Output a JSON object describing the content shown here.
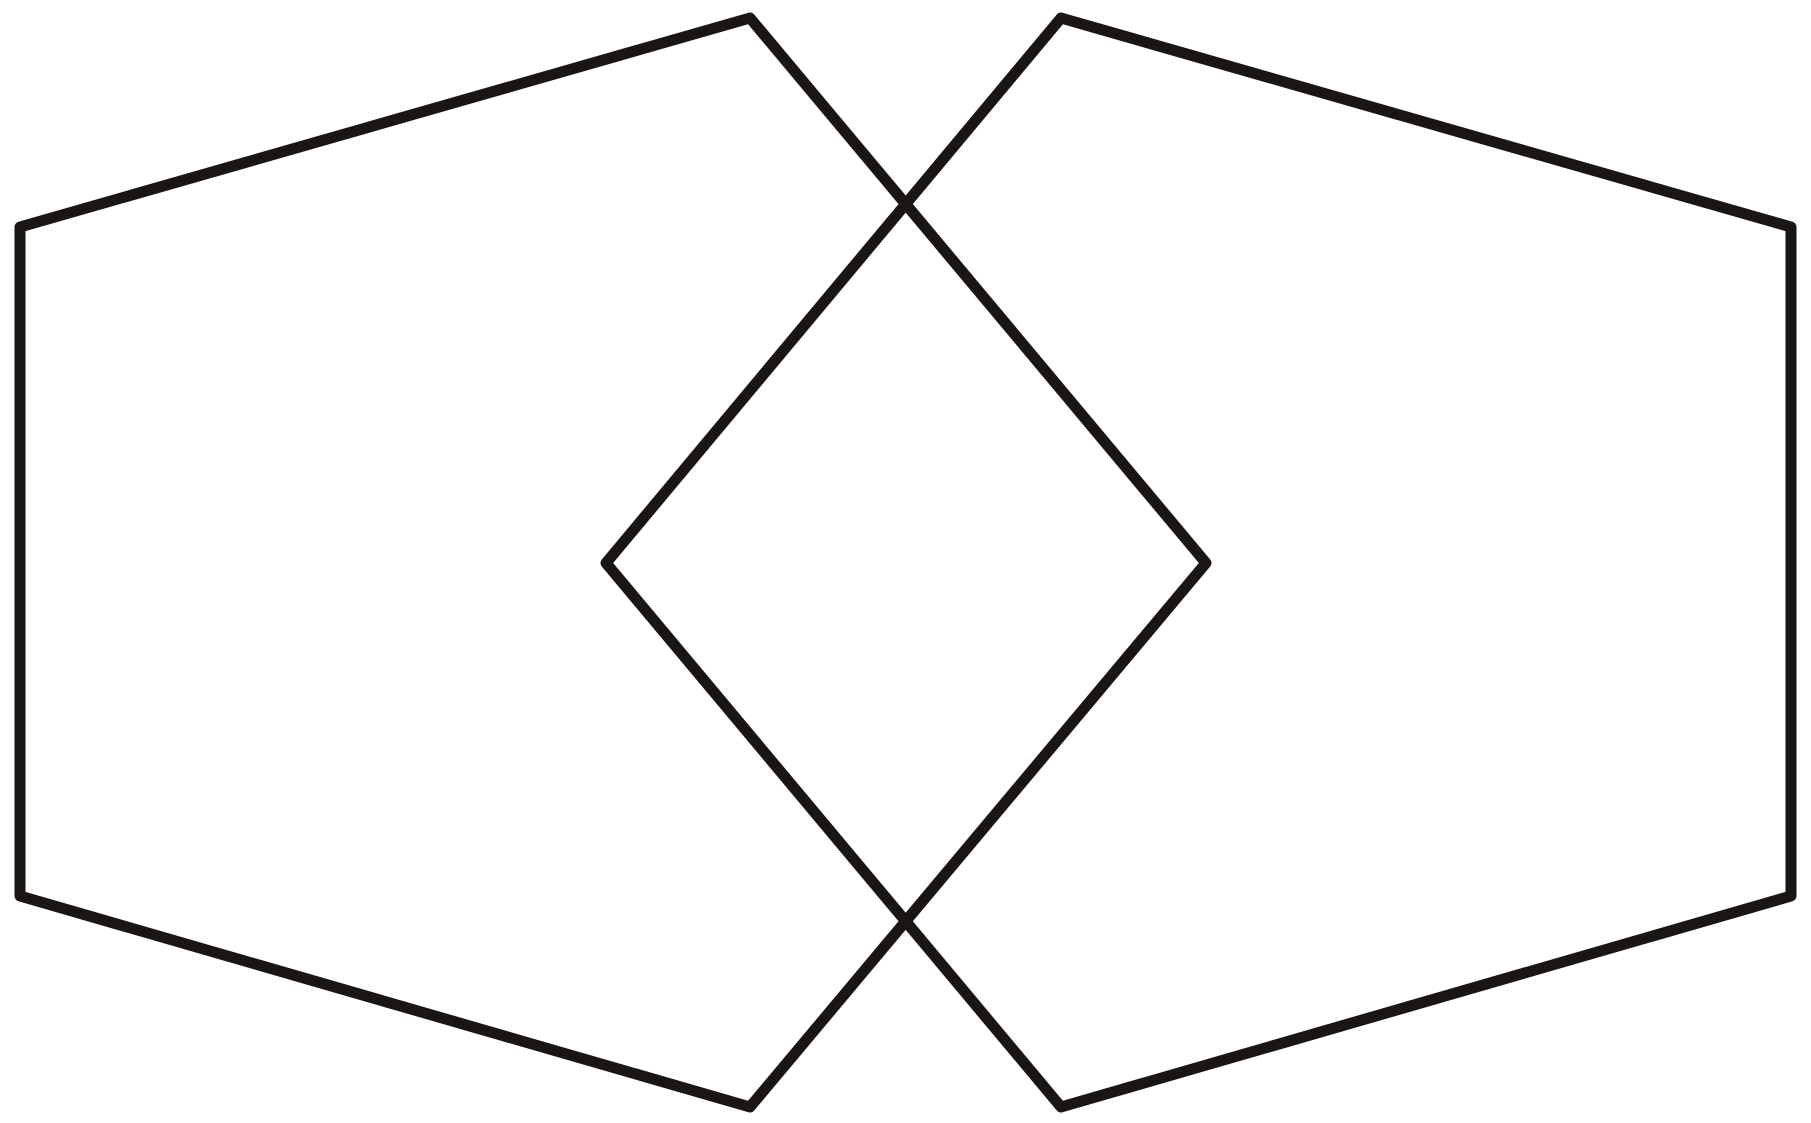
{
  "figure": {
    "type": "line-drawing",
    "description_visible_text": "",
    "shapes": [
      {
        "name": "left-hexagon",
        "sides": 6,
        "closed": true
      },
      {
        "name": "right-hexagon",
        "sides": 6,
        "closed": true
      }
    ],
    "overlap": "diamond",
    "colors": {
      "stroke": "#1a1613",
      "background": "#ffffff"
    }
  }
}
